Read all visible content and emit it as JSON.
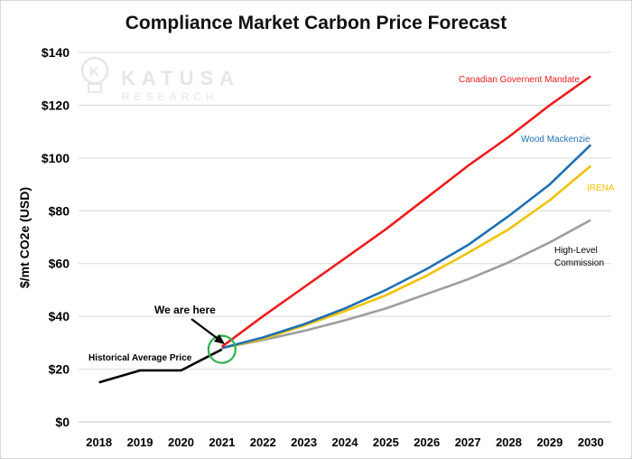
{
  "chart_data": {
    "type": "line",
    "title": "Compliance Market Carbon Price Forecast",
    "ylabel": "$/mt CO2e (USD)",
    "xlabel": "",
    "ylim": [
      0,
      140
    ],
    "yticks": [
      0,
      20,
      40,
      60,
      80,
      100,
      120,
      140
    ],
    "ytick_labels": [
      "$0",
      "$20",
      "$40",
      "$60",
      "$80",
      "$100",
      "$120",
      "$140"
    ],
    "categories": [
      "2018",
      "2019",
      "2020",
      "2021",
      "2022",
      "2023",
      "2024",
      "2025",
      "2026",
      "2027",
      "2028",
      "2029",
      "2030"
    ],
    "grid": true,
    "series": [
      {
        "key": "historical",
        "name": "Historical Average Price",
        "color": "#000000",
        "values": [
          15,
          19.5,
          19.5,
          27.5,
          null,
          null,
          null,
          null,
          null,
          null,
          null,
          null,
          null
        ]
      },
      {
        "key": "canadian",
        "name": "Canadian Governent Mandate",
        "color": "#ee1c1c",
        "values": [
          null,
          null,
          null,
          28.5,
          40,
          51,
          62,
          73,
          85,
          97,
          108,
          120,
          131
        ]
      },
      {
        "key": "wood",
        "name": "Wood Mackenzie",
        "color": "#1f6fb4",
        "values": [
          null,
          null,
          null,
          28,
          32,
          37,
          43,
          50,
          58,
          67,
          78,
          90,
          105
        ]
      },
      {
        "key": "irena",
        "name": "IRENA",
        "color": "#f2c200",
        "values": [
          null,
          null,
          null,
          28,
          31.5,
          36.5,
          42,
          48,
          55.5,
          64,
          73,
          84,
          97
        ]
      },
      {
        "key": "hlc",
        "name": "High-Level Commission",
        "color": "#9e9e9e",
        "values": [
          null,
          null,
          null,
          28,
          31,
          34.5,
          38.5,
          43,
          48.5,
          54,
          60.5,
          68,
          76.5
        ]
      }
    ],
    "annotations": {
      "we_are_here": "We are here",
      "historical": "Historical Average Price",
      "canadian": "Canadian Governent Mandate",
      "wood": "Wood Mackenzie",
      "irena": "IRENA",
      "hlc_line1": "High-Level",
      "hlc_line2": "Commission"
    },
    "marker_circle_color": "#2db34a"
  },
  "watermark": {
    "brand": "KATUSA",
    "sub": "RESEARCH",
    "logo_letter": "K"
  }
}
